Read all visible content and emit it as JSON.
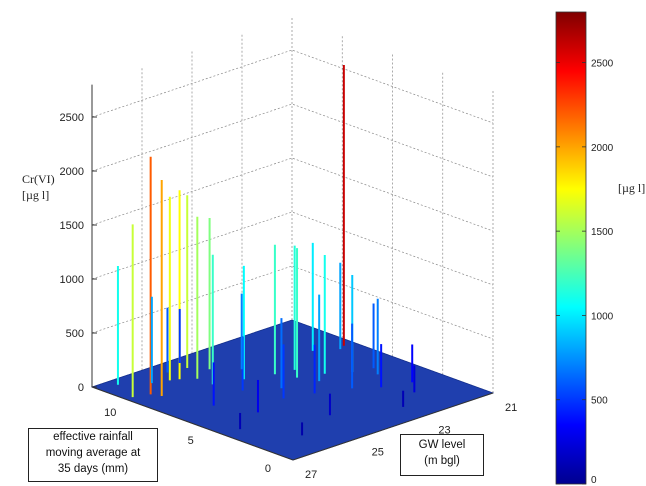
{
  "chart_data": {
    "type": "surface3d",
    "zlabel_line1": "Cr(VI)",
    "zlabel_line2": "[µg l]",
    "colorbar_label": "[µg l]",
    "xlabel": "effective rainfall\nmoving average at\n35 days (mm)",
    "ylabel": "GW level\n(m bgl)",
    "x_ticks": [
      "10",
      "5",
      "0"
    ],
    "y_ticks": [
      "21",
      "23",
      "25",
      "27"
    ],
    "z_ticks": [
      "0",
      "500",
      "1000",
      "1500",
      "2000",
      "2500"
    ],
    "colorbar_ticks": [
      "0",
      "500",
      "1000",
      "1500",
      "2000",
      "2500"
    ],
    "zlim": [
      0,
      2800
    ],
    "xlim": [
      0,
      13
    ],
    "ylim": [
      21,
      27
    ],
    "colormap": "jet",
    "grid": true,
    "spikes": [
      {
        "x": 9.0,
        "y": 21.3,
        "z": 2600
      },
      {
        "x": 10.5,
        "y": 26.4,
        "z": 2200
      },
      {
        "x": 10.0,
        "y": 26.3,
        "z": 2000
      },
      {
        "x": 10.8,
        "y": 26.8,
        "z": 1600
      },
      {
        "x": 11.0,
        "y": 25.3,
        "z": 1750
      },
      {
        "x": 12.4,
        "y": 26.5,
        "z": 1100
      },
      {
        "x": 10.5,
        "y": 25.0,
        "z": 1500
      },
      {
        "x": 11.2,
        "y": 25.5,
        "z": 1700
      },
      {
        "x": 11.8,
        "y": 24.7,
        "z": 1600
      },
      {
        "x": 11.0,
        "y": 24.4,
        "z": 1400
      },
      {
        "x": 9.5,
        "y": 25.0,
        "z": 1200
      },
      {
        "x": 9.0,
        "y": 24.3,
        "z": 1050
      },
      {
        "x": 8.5,
        "y": 23.6,
        "z": 1200
      },
      {
        "x": 8.3,
        "y": 23.1,
        "z": 1150
      },
      {
        "x": 7.5,
        "y": 23.4,
        "z": 1200
      },
      {
        "x": 7.0,
        "y": 22.8,
        "z": 1100
      },
      {
        "x": 9.5,
        "y": 22.0,
        "z": 1000
      },
      {
        "x": 8.8,
        "y": 21.5,
        "z": 800
      },
      {
        "x": 6.3,
        "y": 22.3,
        "z": 900
      },
      {
        "x": 6.0,
        "y": 21.8,
        "z": 600
      },
      {
        "x": 11.5,
        "y": 25.9,
        "z": 800
      },
      {
        "x": 12.0,
        "y": 25.2,
        "z": 600
      },
      {
        "x": 6.0,
        "y": 24.5,
        "z": 500
      },
      {
        "x": 5.5,
        "y": 23.8,
        "z": 450
      },
      {
        "x": 4.8,
        "y": 23.0,
        "z": 600
      },
      {
        "x": 4.0,
        "y": 22.5,
        "z": 400
      },
      {
        "x": 3.5,
        "y": 21.8,
        "z": 350
      },
      {
        "x": 5.5,
        "y": 25.5,
        "z": 300
      },
      {
        "x": 7.5,
        "y": 25.9,
        "z": 400
      },
      {
        "x": 8.0,
        "y": 24.8,
        "z": 500
      },
      {
        "x": 2.5,
        "y": 22.2,
        "z": 250
      },
      {
        "x": 3.0,
        "y": 24.5,
        "z": 200
      },
      {
        "x": 1.5,
        "y": 23.0,
        "z": 150
      },
      {
        "x": 4.5,
        "y": 26.5,
        "z": 150
      },
      {
        "x": 2.0,
        "y": 25.8,
        "z": 120
      },
      {
        "x": 7.0,
        "y": 24.1,
        "z": 650
      },
      {
        "x": 6.5,
        "y": 23.2,
        "z": 800
      },
      {
        "x": 5.3,
        "y": 22.0,
        "z": 700
      },
      {
        "x": 10.0,
        "y": 23.9,
        "z": 700
      },
      {
        "x": 12.5,
        "y": 24.6,
        "z": 500
      }
    ]
  }
}
